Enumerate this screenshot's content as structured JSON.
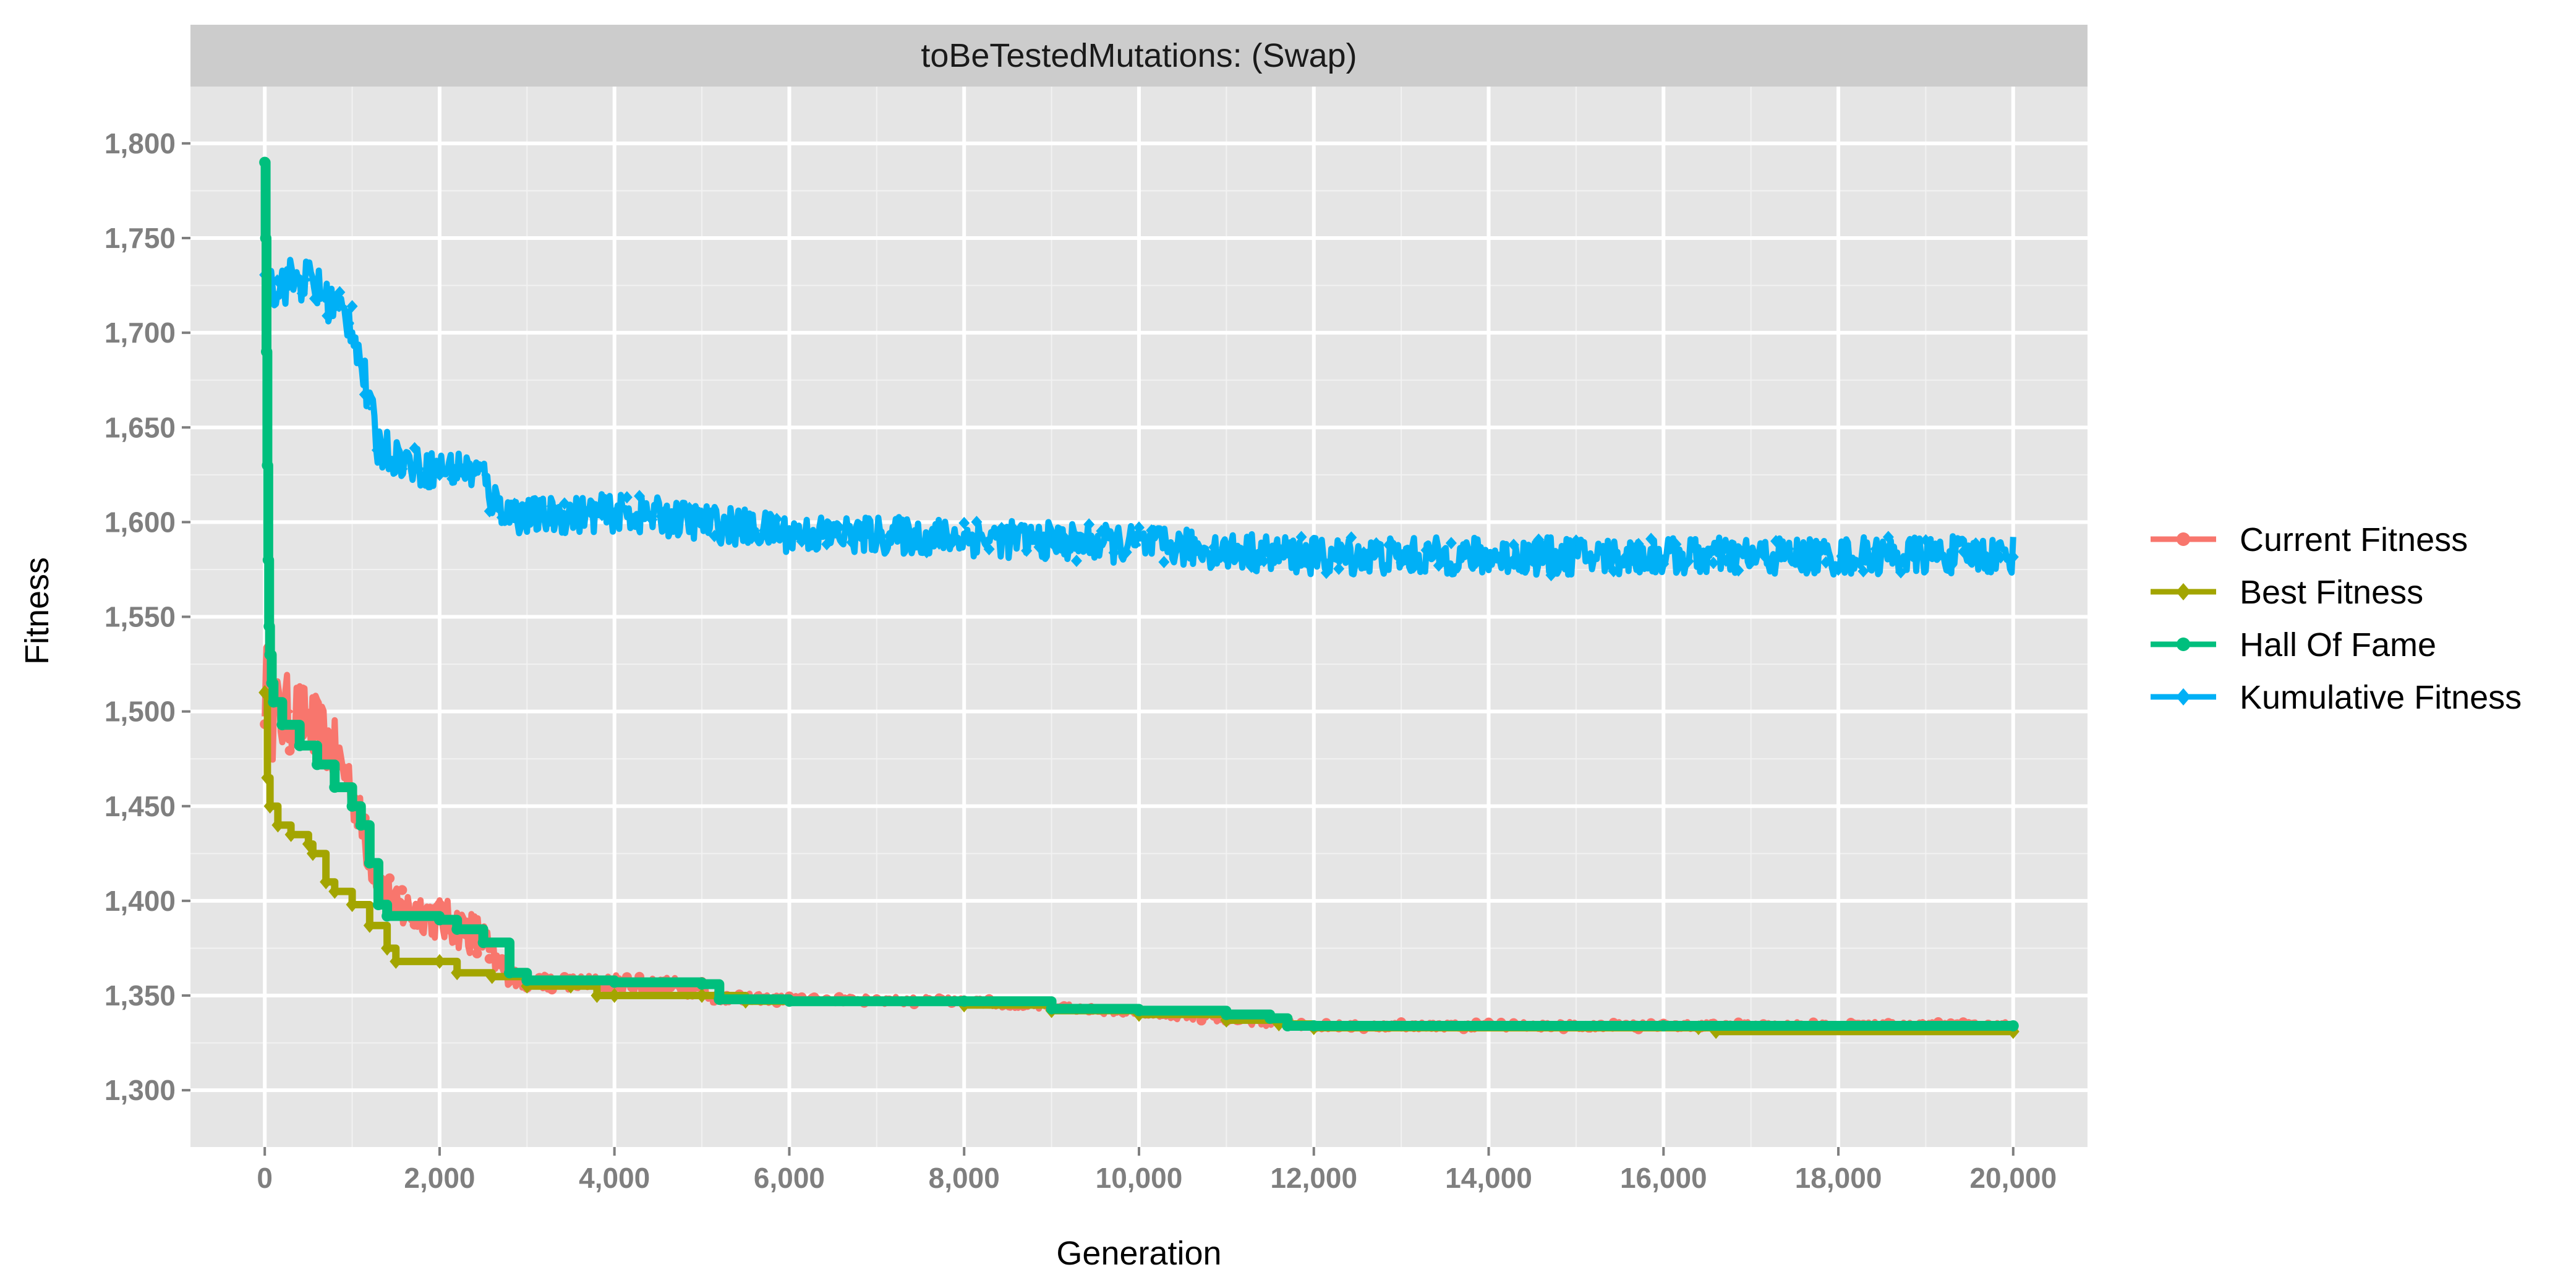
{
  "chart_data": {
    "type": "line",
    "facet_title": "toBeTestedMutations: (Swap)",
    "xlabel": "Generation",
    "ylabel": "Fitness",
    "xlim": [
      -850,
      20850
    ],
    "ylim": [
      1270,
      1830
    ],
    "x_ticks": [
      0,
      2000,
      4000,
      6000,
      8000,
      10000,
      12000,
      14000,
      16000,
      18000,
      20000
    ],
    "x_tick_labels": [
      "0",
      "2,000",
      "4,000",
      "6,000",
      "8,000",
      "10,000",
      "12,000",
      "14,000",
      "16,000",
      "18,000",
      "20,000"
    ],
    "y_ticks": [
      1300,
      1350,
      1400,
      1450,
      1500,
      1550,
      1600,
      1650,
      1700,
      1750,
      1800
    ],
    "y_tick_labels": [
      "1,300",
      "1,350",
      "1,400",
      "1,450",
      "1,500",
      "1,550",
      "1,600",
      "1,650",
      "1,700",
      "1,750",
      "1,800"
    ],
    "grid": true,
    "legend_position": "right",
    "series": [
      {
        "name": "Current Fitness",
        "color": "#F8766D",
        "marker": "circle",
        "x": [
          0,
          100,
          300,
          500,
          700,
          900,
          1000,
          1100,
          1200,
          1300,
          1500,
          1800,
          2000,
          2300,
          2500,
          2600,
          2800,
          3000,
          3500,
          4000,
          4500,
          5000,
          5100,
          6000,
          8000,
          10000,
          12000,
          16000,
          20000
        ],
        "y": [
          1520,
          1495,
          1500,
          1495,
          1485,
          1470,
          1460,
          1440,
          1425,
          1410,
          1395,
          1395,
          1390,
          1385,
          1380,
          1370,
          1360,
          1357,
          1357,
          1356,
          1355,
          1354,
          1349,
          1348,
          1347,
          1341,
          1334,
          1334,
          1334
        ],
        "band": [
          28,
          25,
          20,
          18,
          18,
          18,
          16,
          14,
          14,
          12,
          12,
          12,
          12,
          12,
          12,
          8,
          5,
          4,
          4,
          5,
          5,
          5,
          3,
          2,
          2,
          2,
          2,
          2,
          2
        ]
      },
      {
        "name": "Best Fitness",
        "color": "#A3A500",
        "marker": "diamond",
        "x": [
          0,
          30,
          60,
          150,
          300,
          500,
          550,
          700,
          800,
          1000,
          1200,
          1400,
          1500,
          2000,
          2200,
          2600,
          3000,
          3500,
          3800,
          4000,
          5000,
          5500,
          8000,
          9000,
          10000,
          11000,
          11600,
          12000,
          16400,
          16600,
          20000
        ],
        "y": [
          1510,
          1465,
          1450,
          1440,
          1435,
          1430,
          1425,
          1410,
          1405,
          1398,
          1387,
          1375,
          1368,
          1368,
          1362,
          1360,
          1355,
          1355,
          1350,
          1350,
          1350,
          1347,
          1345,
          1342,
          1340,
          1337,
          1335,
          1333,
          1333,
          1331,
          1331
        ]
      },
      {
        "name": "Hall Of Fame",
        "color": "#00BF7D",
        "marker": "circle",
        "x": [
          0,
          10,
          20,
          30,
          40,
          50,
          60,
          80,
          100,
          200,
          400,
          600,
          800,
          1000,
          1100,
          1200,
          1300,
          1400,
          2000,
          2200,
          2500,
          2800,
          3000,
          4000,
          5000,
          5200,
          6000,
          8000,
          9000,
          10000,
          11000,
          11500,
          11700,
          12000,
          16000,
          20000
        ],
        "y": [
          1790,
          1750,
          1690,
          1630,
          1580,
          1545,
          1530,
          1515,
          1505,
          1493,
          1482,
          1472,
          1460,
          1450,
          1440,
          1420,
          1398,
          1392,
          1390,
          1385,
          1378,
          1362,
          1358,
          1357,
          1356,
          1348,
          1347,
          1347,
          1343,
          1342,
          1340,
          1338,
          1334,
          1334,
          1334,
          1334
        ]
      },
      {
        "name": "Kumulative Fitness",
        "color": "#00B0F6",
        "marker": "diamond",
        "x": [
          0,
          100,
          300,
          500,
          700,
          850,
          1000,
          1100,
          1200,
          1300,
          1500,
          1800,
          2000,
          2300,
          2500,
          2600,
          2800,
          3000,
          4000,
          4500,
          5000,
          6000,
          8000,
          10000,
          12000,
          14000,
          16000,
          18000,
          20000
        ],
        "y": [
          1735,
          1725,
          1728,
          1728,
          1718,
          1712,
          1705,
          1685,
          1660,
          1640,
          1635,
          1628,
          1628,
          1628,
          1625,
          1612,
          1605,
          1603,
          1605,
          1603,
          1600,
          1594,
          1592,
          1588,
          1582,
          1582,
          1582,
          1582,
          1583
        ],
        "band": [
          12,
          12,
          12,
          12,
          12,
          12,
          12,
          12,
          12,
          12,
          10,
          10,
          10,
          10,
          10,
          10,
          10,
          10,
          10,
          10,
          10,
          10,
          10,
          10,
          10,
          10,
          10,
          10,
          10
        ]
      }
    ]
  }
}
